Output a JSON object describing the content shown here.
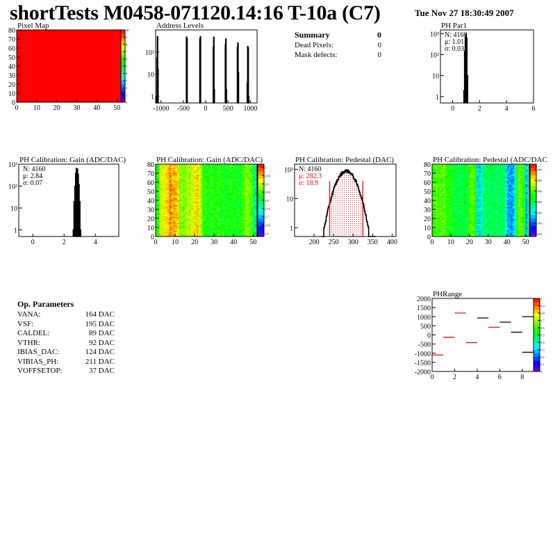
{
  "header": {
    "title": "shortTests M0458-071120.14:16 T-10a (C7)",
    "date": "Tue Nov 27 18:30:49 2007"
  },
  "summary": {
    "title": "Summary",
    "total": "0",
    "rows": [
      {
        "label": "Dead Pixels:",
        "value": "0"
      },
      {
        "label": "Mask defects:",
        "value": "0"
      }
    ]
  },
  "op_parameters": {
    "title": "Op. Parameters",
    "rows": [
      {
        "label": "VANA:",
        "value": "164 DAC"
      },
      {
        "label": "VSF:",
        "value": "195 DAC"
      },
      {
        "label": "CALDEL:",
        "value": "89 DAC"
      },
      {
        "label": "VTHR:",
        "value": "92 DAC"
      },
      {
        "label": "IBIAS_DAC:",
        "value": "124 DAC"
      },
      {
        "label": "VIBIAS_PH:",
        "value": "211 DAC"
      },
      {
        "label": "VOFFSETOP:",
        "value": "37 DAC"
      }
    ]
  },
  "chart_data": [
    {
      "id": "pixmap",
      "type": "heatmap",
      "title": "Pixel Map",
      "xlim": [
        0,
        52
      ],
      "ylim": [
        0,
        80
      ],
      "zlim": [
        0,
        10
      ],
      "xticks": [
        0,
        10,
        20,
        30,
        40,
        50
      ],
      "yticks": [
        0,
        10,
        20,
        30,
        40,
        50,
        60,
        70,
        80
      ],
      "zticks": [
        0,
        1,
        2,
        3,
        4,
        5,
        6,
        7,
        8,
        9,
        10
      ],
      "uniform_value": 10
    },
    {
      "id": "addr",
      "type": "bar",
      "title": "Address Levels",
      "xlim": [
        -1120,
        1150
      ],
      "ylim": [
        0.5,
        1000
      ],
      "log_y": true,
      "xticks": [
        -1000,
        -500,
        0,
        500,
        1000
      ],
      "yticks": [
        {
          "v": 1,
          "l": "1"
        },
        {
          "v": 10,
          "l": "10"
        },
        {
          "v": 100,
          "l": "10²"
        }
      ],
      "bin_width": 10,
      "bins": [
        [
          -1100,
          1
        ],
        [
          -1090,
          55
        ],
        [
          -1080,
          500
        ],
        [
          -1070,
          17
        ],
        [
          -430,
          480
        ],
        [
          -420,
          400
        ],
        [
          -130,
          400
        ],
        [
          -120,
          500
        ],
        [
          170,
          170
        ],
        [
          180,
          480
        ],
        [
          190,
          2
        ],
        [
          440,
          220
        ],
        [
          450,
          400
        ],
        [
          460,
          2
        ],
        [
          710,
          170
        ],
        [
          720,
          260
        ],
        [
          730,
          12
        ],
        [
          930,
          4
        ],
        [
          940,
          180
        ],
        [
          950,
          150
        ],
        [
          960,
          1
        ]
      ]
    },
    {
      "id": "par1",
      "type": "bar",
      "title": "PH Par1",
      "xlim": [
        -0.9,
        6
      ],
      "ylim": [
        0.5,
        1500
      ],
      "log_y": true,
      "xticks": [
        0,
        2,
        4,
        6
      ],
      "yticks": [
        {
          "v": 1,
          "l": "1"
        },
        {
          "v": 10,
          "l": "10"
        },
        {
          "v": 100,
          "l": "10²"
        },
        {
          "v": 1000,
          "l": "10³"
        }
      ],
      "bin_width": 0.05,
      "bins": [
        [
          0.85,
          2
        ],
        [
          0.9,
          150
        ],
        [
          0.95,
          700
        ],
        [
          1.0,
          1000
        ],
        [
          1.05,
          600
        ],
        [
          1.1,
          10
        ]
      ],
      "stats": [
        "N: 4160",
        "μ: 1.01",
        "σ: 0.03"
      ]
    },
    {
      "id": "gainh",
      "type": "bar",
      "title": "PH Calibration: Gain (ADC/DAC)",
      "xlim": [
        -0.9,
        5.5
      ],
      "ylim": [
        0.5,
        1000
      ],
      "log_y": true,
      "xticks": [
        0,
        2,
        4
      ],
      "yticks": [
        {
          "v": 1,
          "l": "1"
        },
        {
          "v": 10,
          "l": "10"
        },
        {
          "v": 100,
          "l": "10²"
        },
        {
          "v": 1000,
          "l": "10³"
        }
      ],
      "bin_width": 0.05,
      "bins": [
        [
          2.6,
          1
        ],
        [
          2.65,
          20
        ],
        [
          2.7,
          100
        ],
        [
          2.75,
          400
        ],
        [
          2.8,
          650
        ],
        [
          2.85,
          600
        ],
        [
          2.9,
          350
        ],
        [
          2.95,
          120
        ],
        [
          3.0,
          20
        ],
        [
          3.05,
          1
        ]
      ],
      "stats": [
        "N: 4160",
        "μ: 2.84",
        "σ: 0.07"
      ]
    },
    {
      "id": "gainmap",
      "type": "heatmap",
      "title": "PH Calibration: Gain (ADC/DAC)",
      "xlim": [
        0,
        52
      ],
      "ylim": [
        0,
        80
      ],
      "zlim": [
        2.58,
        3.02
      ],
      "xticks": [
        0,
        10,
        20,
        30,
        40,
        50
      ],
      "yticks": [
        0,
        10,
        20,
        30,
        40,
        50,
        60,
        70,
        80
      ],
      "zticks": [
        2.6,
        2.65,
        2.7,
        2.75,
        2.8,
        2.85,
        2.9,
        2.95,
        3
      ],
      "column_means": [
        2.82,
        2.84,
        2.9,
        2.92,
        2.92,
        2.93,
        2.94,
        2.97,
        2.95,
        2.96,
        2.95,
        2.93,
        2.87,
        2.88,
        2.87,
        2.88,
        2.9,
        2.88,
        2.9,
        2.92,
        2.93,
        2.94,
        2.91,
        2.88,
        2.83,
        2.84,
        2.83,
        2.82,
        2.84,
        2.83,
        2.82,
        2.83,
        2.84,
        2.82,
        2.83,
        2.81,
        2.83,
        2.82,
        2.84,
        2.82,
        2.83,
        2.81,
        2.83,
        2.82,
        2.84,
        2.85,
        2.88,
        2.87,
        2.86,
        2.85,
        2.8,
        2.72
      ],
      "spread": 0.03
    },
    {
      "id": "pedh",
      "type": "bar",
      "title": "PH Calibration: Pedestal (DAC)",
      "xlim": [
        150,
        410
      ],
      "ylim": [
        0.5,
        150
      ],
      "log_y": true,
      "xticks": [
        200,
        250,
        300,
        350,
        400
      ],
      "yticks": [
        {
          "v": 1,
          "l": "1"
        },
        {
          "v": 10,
          "l": "10"
        },
        {
          "v": 100,
          "l": "10²"
        }
      ],
      "entries": 4160,
      "mean": 282.3,
      "sigma": 18.9,
      "cuts": [
        240,
        325
      ],
      "cut_color": "#ff0000",
      "stats": [
        "N: 4160",
        "μ: 282.3",
        "σ: 18.9"
      ],
      "stats_colors": [
        "#000000",
        "#ff0000",
        "#ff0000"
      ]
    },
    {
      "id": "pedmap",
      "type": "heatmap",
      "title": "PH Calibration: Pedestal (ADC/DAC",
      "xlim": [
        0,
        52
      ],
      "ylim": [
        0,
        80
      ],
      "zlim": [
        215,
        350
      ],
      "xticks": [
        0,
        10,
        20,
        30,
        40,
        50
      ],
      "yticks": [
        0,
        10,
        20,
        30,
        40,
        50,
        60,
        70,
        80
      ],
      "zticks": [
        220,
        240,
        260,
        280,
        300,
        320,
        340
      ],
      "column_means": [
        295,
        298,
        300,
        296,
        300,
        297,
        302,
        294,
        290,
        292,
        290,
        288,
        282,
        284,
        282,
        285,
        283,
        286,
        284,
        288,
        300,
        302,
        298,
        285,
        258,
        255,
        270,
        278,
        280,
        282,
        279,
        281,
        283,
        280,
        278,
        281,
        279,
        282,
        280,
        262,
        250,
        248,
        246,
        252,
        270,
        290,
        302,
        300,
        296,
        282,
        250,
        270
      ],
      "spread": 10
    },
    {
      "id": "phrange",
      "type": "segments",
      "title": "PHRange",
      "xlim": [
        0,
        9
      ],
      "ylim": [
        -2000,
        2000
      ],
      "zlim": [
        0,
        1
      ],
      "xticks": [
        0,
        2,
        4,
        6,
        8
      ],
      "yticks": [
        -2000,
        -1500,
        -1000,
        -500,
        0,
        500,
        1000,
        1500,
        2000
      ],
      "zticks": [
        0,
        0.1,
        0.2,
        0.3,
        0.4,
        0.5,
        0.6,
        0.7,
        0.8,
        0.9,
        1
      ],
      "segments": [
        {
          "x": [
            0,
            1
          ],
          "y": -1100,
          "c": "#ff0000"
        },
        {
          "x": [
            1,
            2
          ],
          "y": -130,
          "c": "#ff0000"
        },
        {
          "x": [
            2,
            3
          ],
          "y": 1200,
          "c": "#ff0000"
        },
        {
          "x": [
            3,
            4
          ],
          "y": -420,
          "c": "#ff0000"
        },
        {
          "x": [
            4,
            5
          ],
          "y": 930,
          "c": "#000000"
        },
        {
          "x": [
            5,
            6
          ],
          "y": 420,
          "c": "#ff0000"
        },
        {
          "x": [
            6,
            7
          ],
          "y": 700,
          "c": "#000000"
        },
        {
          "x": [
            7,
            8
          ],
          "y": 150,
          "c": "#000000"
        },
        {
          "x": [
            8,
            9
          ],
          "y": 1000,
          "c": "#000000"
        },
        {
          "x": [
            8,
            9
          ],
          "y": -950,
          "c": "#000000"
        }
      ]
    }
  ]
}
